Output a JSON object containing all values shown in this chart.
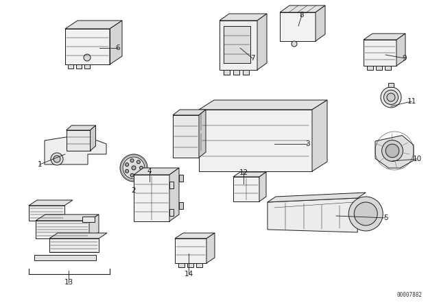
{
  "background_color": "#ffffff",
  "fig_width": 6.4,
  "fig_height": 4.48,
  "dpi": 100,
  "watermark": "00007882",
  "lc": "#1a1a1a",
  "lw_main": 0.7,
  "lw_detail": 0.35,
  "label_fontsize": 7.5
}
